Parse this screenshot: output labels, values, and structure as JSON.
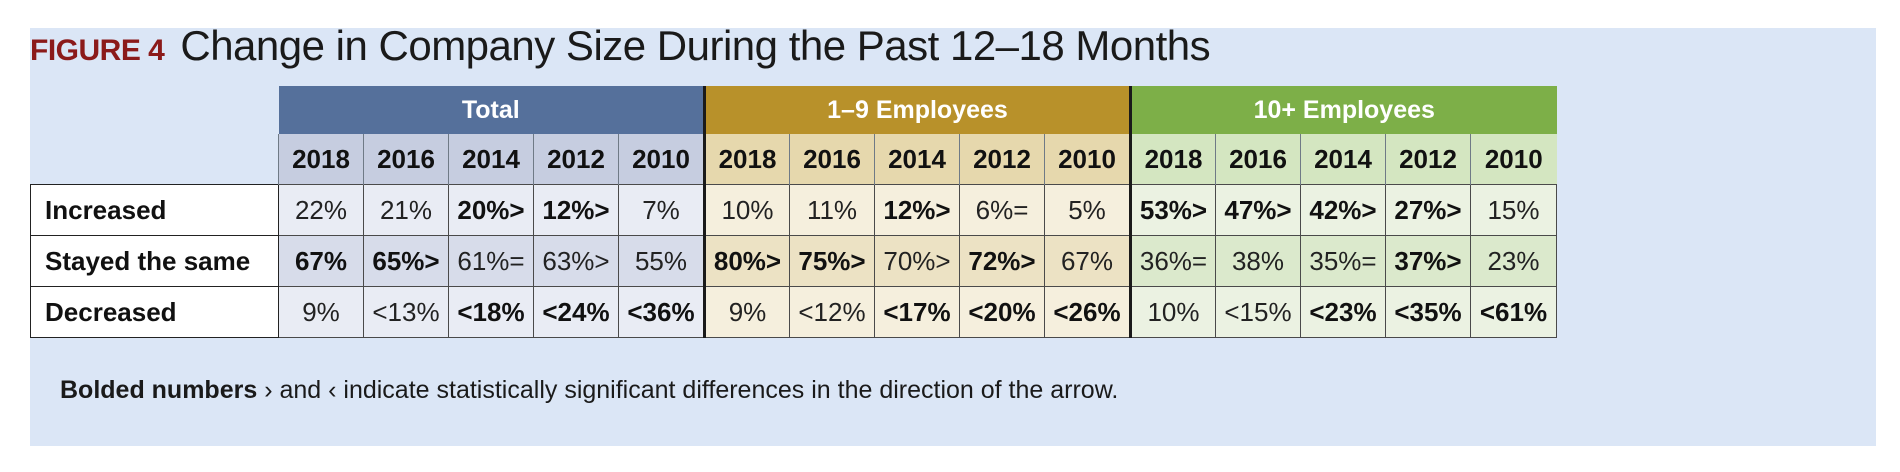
{
  "figure": {
    "label": "FIGURE 4",
    "title": "Change in Company Size During the Past 12–18 Months"
  },
  "table": {
    "groups": [
      {
        "label": "Total"
      },
      {
        "label": "1–9 Employees"
      },
      {
        "label": "10+ Employees"
      }
    ],
    "years": [
      "2018",
      "2016",
      "2014",
      "2012",
      "2010"
    ],
    "rows": [
      {
        "label": "Increased",
        "cells": [
          {
            "text": "22%",
            "bold": false
          },
          {
            "text": "21%",
            "bold": false
          },
          {
            "text": "20%>",
            "bold": true
          },
          {
            "text": "12%>",
            "bold": true
          },
          {
            "text": "7%",
            "bold": false
          },
          {
            "text": "10%",
            "bold": false
          },
          {
            "text": "11%",
            "bold": false
          },
          {
            "text": "12%>",
            "bold": true
          },
          {
            "text": "6%=",
            "bold": false
          },
          {
            "text": "5%",
            "bold": false
          },
          {
            "text": "53%>",
            "bold": true
          },
          {
            "text": "47%>",
            "bold": true
          },
          {
            "text": "42%>",
            "bold": true
          },
          {
            "text": "27%>",
            "bold": true
          },
          {
            "text": "15%",
            "bold": false
          }
        ]
      },
      {
        "label": "Stayed the same",
        "cells": [
          {
            "text": "67%",
            "bold": true
          },
          {
            "text": "65%>",
            "bold": true
          },
          {
            "text": "61%=",
            "bold": false
          },
          {
            "text": "63%>",
            "bold": false
          },
          {
            "text": "55%",
            "bold": false
          },
          {
            "text": "80%>",
            "bold": true
          },
          {
            "text": "75%>",
            "bold": true
          },
          {
            "text": "70%>",
            "bold": false
          },
          {
            "text": "72%>",
            "bold": true
          },
          {
            "text": "67%",
            "bold": false
          },
          {
            "text": "36%=",
            "bold": false
          },
          {
            "text": "38%",
            "bold": false
          },
          {
            "text": "35%=",
            "bold": false
          },
          {
            "text": "37%>",
            "bold": true
          },
          {
            "text": "23%",
            "bold": false
          }
        ]
      },
      {
        "label": "Decreased",
        "cells": [
          {
            "text": "9%",
            "bold": false
          },
          {
            "text": "<13%",
            "bold": false
          },
          {
            "text": "<18%",
            "bold": true
          },
          {
            "text": "<24%",
            "bold": true
          },
          {
            "text": "<36%",
            "bold": true
          },
          {
            "text": "9%",
            "bold": false
          },
          {
            "text": "<12%",
            "bold": false
          },
          {
            "text": "<17%",
            "bold": true
          },
          {
            "text": "<20%",
            "bold": true
          },
          {
            "text": "<26%",
            "bold": true
          },
          {
            "text": "10%",
            "bold": false
          },
          {
            "text": "<15%",
            "bold": false
          },
          {
            "text": "<23%",
            "bold": true
          },
          {
            "text": "<35%",
            "bold": true
          },
          {
            "text": "<61%",
            "bold": true
          }
        ]
      }
    ]
  },
  "footnote": {
    "bold_part": "Bolded numbers",
    "rest": " › and ‹ indicate statistically significant differences in the direction of the arrow."
  },
  "colors": {
    "panel_background": "#dbe6f6",
    "figure_label": "#8b1a1a",
    "total_header": "#55709b",
    "small_business_header": "#b8912a",
    "large_business_header": "#7daf48"
  }
}
